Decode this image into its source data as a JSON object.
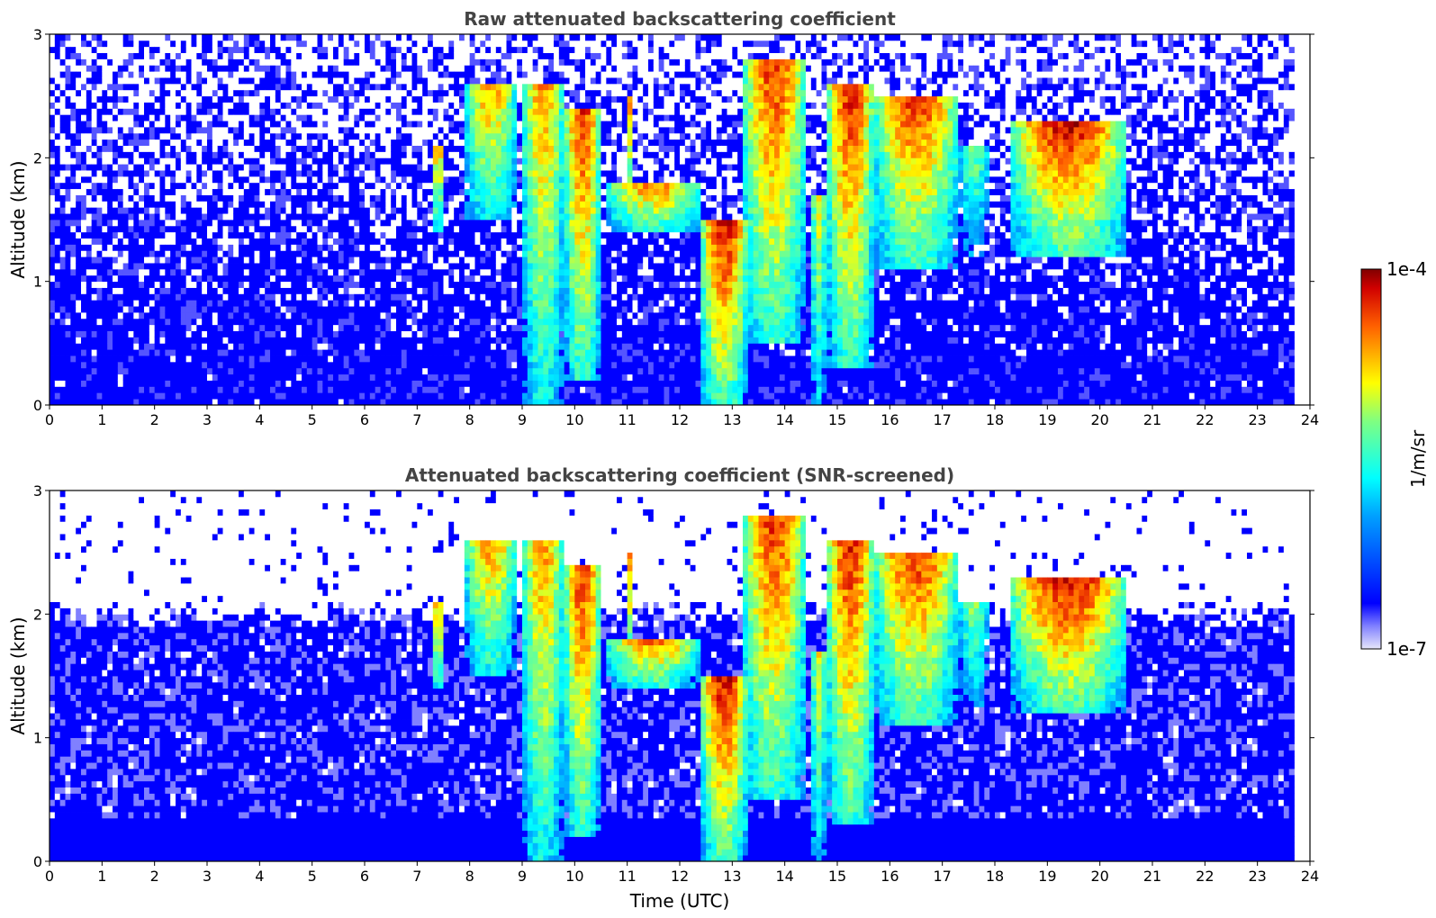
{
  "chart_data": [
    {
      "type": "heatmap",
      "title": "Raw attenuated backscattering coefficient",
      "xlabel": "",
      "ylabel": "Altitude (km)",
      "xlim": [
        0,
        24
      ],
      "ylim": [
        0,
        3
      ],
      "xticks": [
        "0",
        "1",
        "2",
        "3",
        "4",
        "5",
        "6",
        "7",
        "8",
        "9",
        "10",
        "11",
        "12",
        "13",
        "14",
        "15",
        "16",
        "17",
        "18",
        "19",
        "20",
        "21",
        "22",
        "23",
        "24"
      ],
      "yticks": [
        "0",
        "1",
        "2",
        "3"
      ],
      "data_end_time": 23.7,
      "background_level": "low (~1e-6, blue) with white noise above ~0.5 km",
      "features": [
        {
          "x_start": 7.3,
          "x_end": 7.5,
          "alt_bottom": 1.4,
          "alt_top": 2.1,
          "intensity": 0.85
        },
        {
          "x_start": 7.9,
          "x_end": 8.9,
          "alt_bottom": 1.5,
          "alt_top": 2.6,
          "intensity": 0.8
        },
        {
          "x_start": 9.0,
          "x_end": 9.8,
          "alt_bottom": 0.0,
          "alt_top": 2.6,
          "intensity": 0.8
        },
        {
          "x_start": 9.8,
          "x_end": 10.5,
          "alt_bottom": 0.2,
          "alt_top": 2.4,
          "intensity": 0.9
        },
        {
          "x_start": 10.6,
          "x_end": 12.4,
          "alt_bottom": 1.4,
          "alt_top": 1.8,
          "intensity": 0.85
        },
        {
          "x_start": 11.0,
          "x_end": 11.1,
          "alt_bottom": 1.5,
          "alt_top": 2.5,
          "intensity": 0.8
        },
        {
          "x_start": 12.4,
          "x_end": 13.3,
          "alt_bottom": 0.0,
          "alt_top": 1.5,
          "intensity": 0.95
        },
        {
          "x_start": 13.2,
          "x_end": 14.4,
          "alt_bottom": 0.5,
          "alt_top": 2.8,
          "intensity": 0.9
        },
        {
          "x_start": 14.5,
          "x_end": 14.8,
          "alt_bottom": 0.0,
          "alt_top": 1.7,
          "intensity": 0.7
        },
        {
          "x_start": 14.8,
          "x_end": 15.7,
          "alt_bottom": 0.3,
          "alt_top": 2.6,
          "intensity": 0.92
        },
        {
          "x_start": 15.7,
          "x_end": 17.3,
          "alt_bottom": 1.1,
          "alt_top": 2.5,
          "intensity": 0.9
        },
        {
          "x_start": 17.3,
          "x_end": 17.9,
          "alt_bottom": 1.2,
          "alt_top": 2.1,
          "intensity": 0.6
        },
        {
          "x_start": 18.3,
          "x_end": 20.5,
          "alt_bottom": 1.2,
          "alt_top": 2.3,
          "intensity": 0.95
        }
      ]
    },
    {
      "type": "heatmap",
      "title": "Attenuated backscattering coefficient (SNR-screened)",
      "xlabel": "Time (UTC)",
      "ylabel": "Altitude (km)",
      "xlim": [
        0,
        24
      ],
      "ylim": [
        0,
        3
      ],
      "xticks": [
        "0",
        "1",
        "2",
        "3",
        "4",
        "5",
        "6",
        "7",
        "8",
        "9",
        "10",
        "11",
        "12",
        "13",
        "14",
        "15",
        "16",
        "17",
        "18",
        "19",
        "20",
        "21",
        "22",
        "23",
        "24"
      ],
      "yticks": [
        "0",
        "1",
        "2",
        "3"
      ],
      "data_end_time": 23.7,
      "screened_top_km": 2.0,
      "features": "same cloud features as raw panel; noise above ~2 km removed (white)"
    }
  ],
  "colorbar": {
    "label": "1/m/sr",
    "min_label": "1e-7",
    "max_label": "1e-4",
    "colormap": "jet",
    "low_color": "#e6e6fa",
    "high_color": "#800000"
  }
}
